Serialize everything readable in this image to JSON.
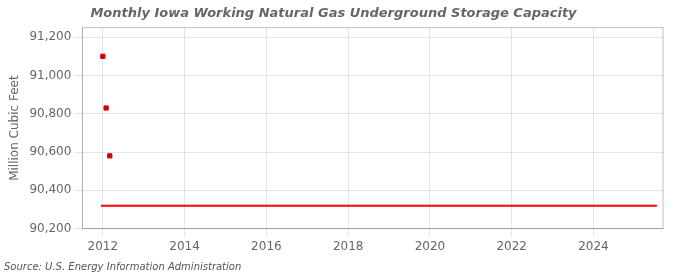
{
  "chart_data": {
    "type": "scatter",
    "title": "Monthly Iowa Working Natural Gas Underground Storage Capacity",
    "ylabel": "Million Cubic Feet",
    "annotations": [
      "Source: U.S. Energy Information Administration"
    ],
    "grid": true,
    "xlim": [
      2011.5,
      2025.7
    ],
    "xticks": [
      2012,
      2014,
      2016,
      2018,
      2020,
      2022,
      2024
    ],
    "ylim": [
      90200,
      91250
    ],
    "yticks": [
      {
        "value": 90200,
        "label": "90,200"
      },
      {
        "value": 90400,
        "label": "90,400"
      },
      {
        "value": 90600,
        "label": "90,600"
      },
      {
        "value": 90800,
        "label": "90,800"
      },
      {
        "value": 91000,
        "label": "91,000"
      },
      {
        "value": 91200,
        "label": "91,200"
      }
    ],
    "series": [
      {
        "type": "line",
        "color": "#ff0000",
        "line_style": "solid",
        "x": [
          2011.95,
          2025.55
        ],
        "values": [
          90320,
          90320
        ]
      },
      {
        "type": "scatter",
        "color": "#cc0000",
        "marker": "square",
        "x": [
          2012.0,
          2012.08,
          2012.17
        ],
        "values": [
          91100,
          90830,
          90580
        ]
      }
    ]
  }
}
